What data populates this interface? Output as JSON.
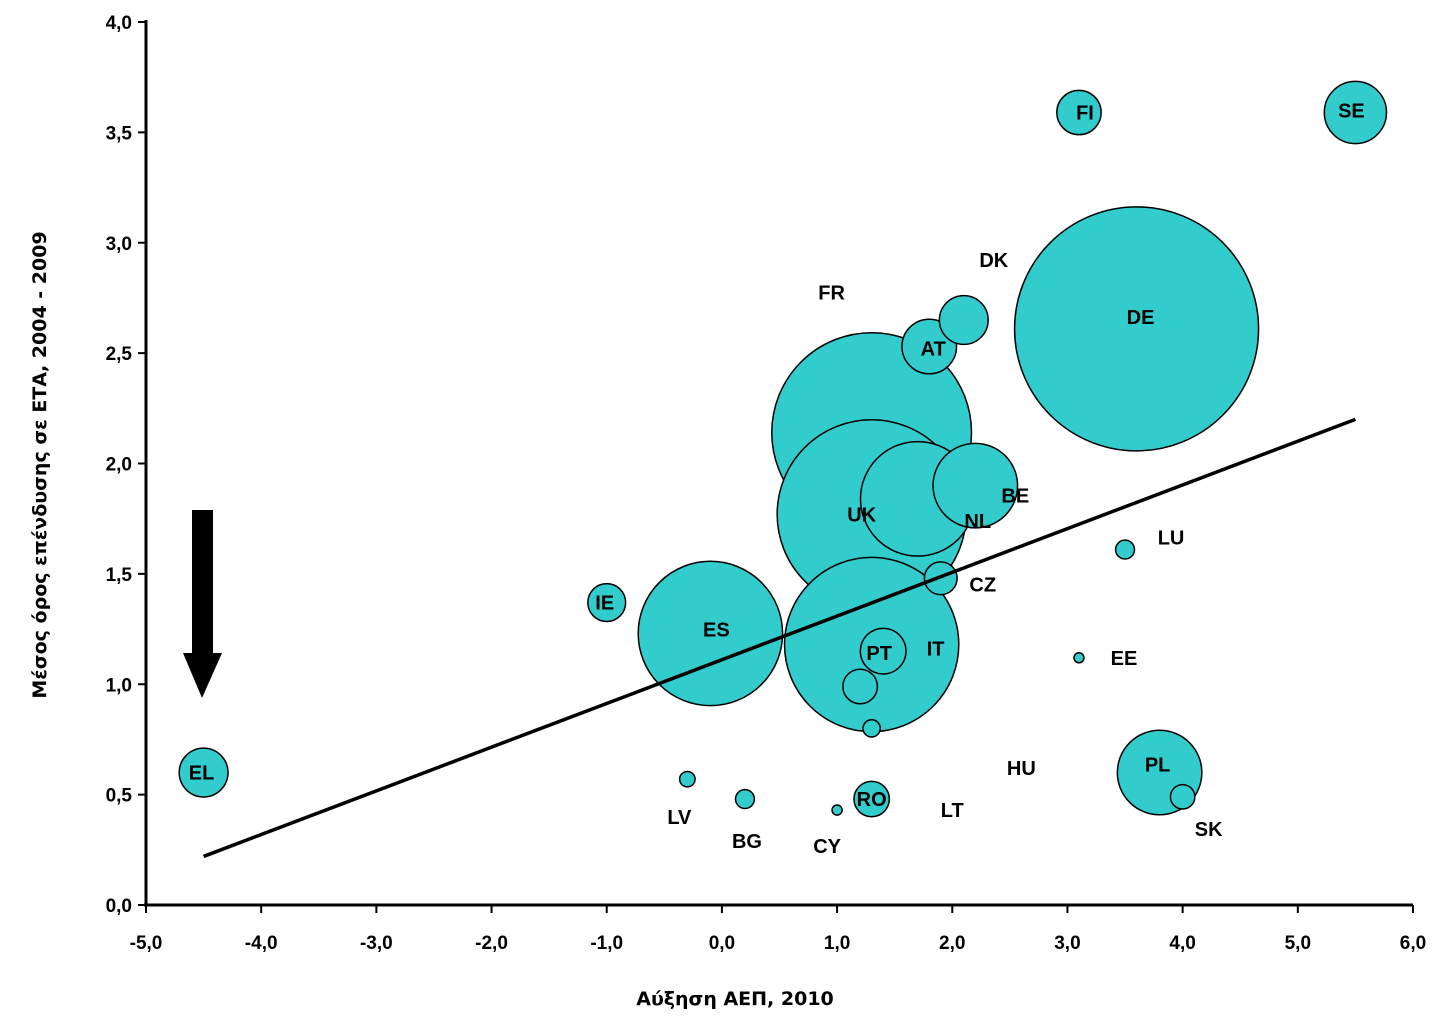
{
  "chart_data": {
    "type": "scatter",
    "title": "",
    "xlabel": "Αύξηση ΑΕΠ, 2010",
    "ylabel": "Μέσος όρος επένδυσης σε ΕΤΑ, 2004 - 2009",
    "xlim": [
      -5.0,
      6.0
    ],
    "ylim": [
      0.0,
      4.0
    ],
    "x_ticks": [
      "-5,0",
      "-4,0",
      "-3,0",
      "-2,0",
      "-1,0",
      "0,0",
      "1,0",
      "2,0",
      "3,0",
      "4,0",
      "5,0",
      "6,0"
    ],
    "y_ticks": [
      "0,0",
      "0,5",
      "1,0",
      "1,5",
      "2,0",
      "2,5",
      "3,0",
      "3,5",
      "4,0"
    ],
    "grid": false,
    "bubble_color": "#33CCCC",
    "points": [
      {
        "label": "DE",
        "x": 3.6,
        "y": 2.61,
        "size": 100
      },
      {
        "label": "FR",
        "x": 1.3,
        "y": 2.14,
        "size": 67
      },
      {
        "label": "UK",
        "x": 1.3,
        "y": 1.77,
        "size": 60
      },
      {
        "label": "IT",
        "x": 1.3,
        "y": 1.18,
        "size": 51
      },
      {
        "label": "ES",
        "x": -0.1,
        "y": 1.23,
        "size": 35
      },
      {
        "label": "NL",
        "x": 1.7,
        "y": 1.84,
        "size": 22
      },
      {
        "label": "PL",
        "x": 3.8,
        "y": 0.6,
        "size": 12
      },
      {
        "label": "BE",
        "x": 2.2,
        "y": 1.9,
        "size": 12
      },
      {
        "label": "SE",
        "x": 5.5,
        "y": 3.59,
        "size": 6.5
      },
      {
        "label": "AT",
        "x": 1.8,
        "y": 2.53,
        "size": 5
      },
      {
        "label": "DK",
        "x": 2.1,
        "y": 2.65,
        "size": 4
      },
      {
        "label": "EL",
        "x": -4.5,
        "y": 0.6,
        "size": 4
      },
      {
        "label": "PT",
        "x": 1.4,
        "y": 1.15,
        "size": 3.5
      },
      {
        "label": "IE",
        "x": -1.0,
        "y": 1.37,
        "size": 2.4
      },
      {
        "label": "FI",
        "x": 3.1,
        "y": 3.59,
        "size": 3.3
      },
      {
        "label": "RO",
        "x": 1.3,
        "y": 0.48,
        "size": 2.1
      },
      {
        "label": "CZ",
        "x": 1.9,
        "y": 1.48,
        "size": 1.8
      },
      {
        "label": "HU",
        "x": 1.2,
        "y": 0.99,
        "size": 2.0
      },
      {
        "label": "SK",
        "x": 4.0,
        "y": 0.49,
        "size": 1.0
      },
      {
        "label": "BG",
        "x": 0.2,
        "y": 0.48,
        "size": 0.6
      },
      {
        "label": "LT",
        "x": 1.3,
        "y": 0.8,
        "size": 0.5
      },
      {
        "label": "LU",
        "x": 3.5,
        "y": 1.61,
        "size": 0.6
      },
      {
        "label": "LV",
        "x": -0.3,
        "y": 0.57,
        "size": 0.4
      },
      {
        "label": "CY",
        "x": 1.0,
        "y": 0.43,
        "size": 0.17
      },
      {
        "label": "EE",
        "x": 3.1,
        "y": 1.12,
        "size": 0.15
      }
    ],
    "trendline": {
      "x": [
        -4.5,
        5.5
      ],
      "y": [
        0.22,
        2.2
      ]
    },
    "annotation": "downward arrow near EL"
  }
}
